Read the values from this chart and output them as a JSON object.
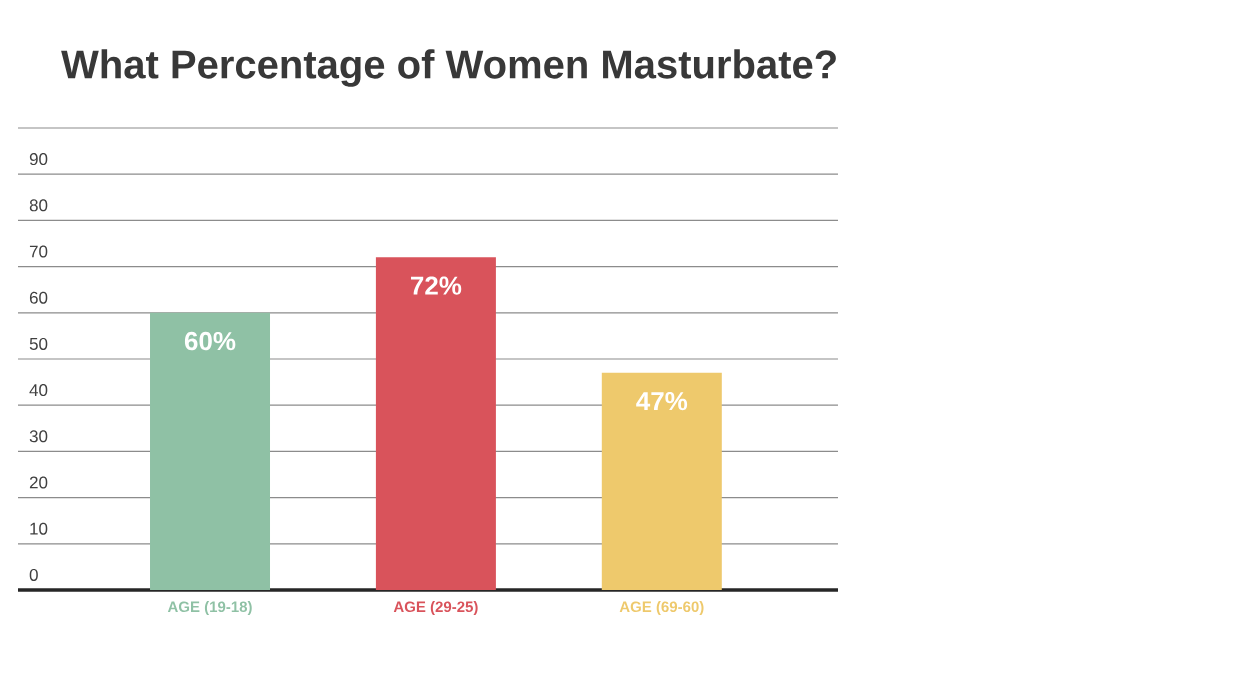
{
  "chart_data": {
    "type": "bar",
    "title": "What Percentage of Women Masturbate?",
    "categories": [
      "AGE (19-18)",
      "AGE (29-25)",
      "AGE (69-60)"
    ],
    "values": [
      60,
      72,
      47
    ],
    "colors": [
      "#8fc1a5",
      "#d9535b",
      "#eec96c"
    ],
    "value_labels": [
      "60%",
      "72%",
      "47%"
    ],
    "ylim": [
      0,
      100
    ],
    "yticks": [
      0,
      10,
      20,
      30,
      40,
      50,
      60,
      70,
      80,
      90,
      {
        "value": 100,
        "label": null
      }
    ],
    "grid": "y",
    "legend": false
  }
}
